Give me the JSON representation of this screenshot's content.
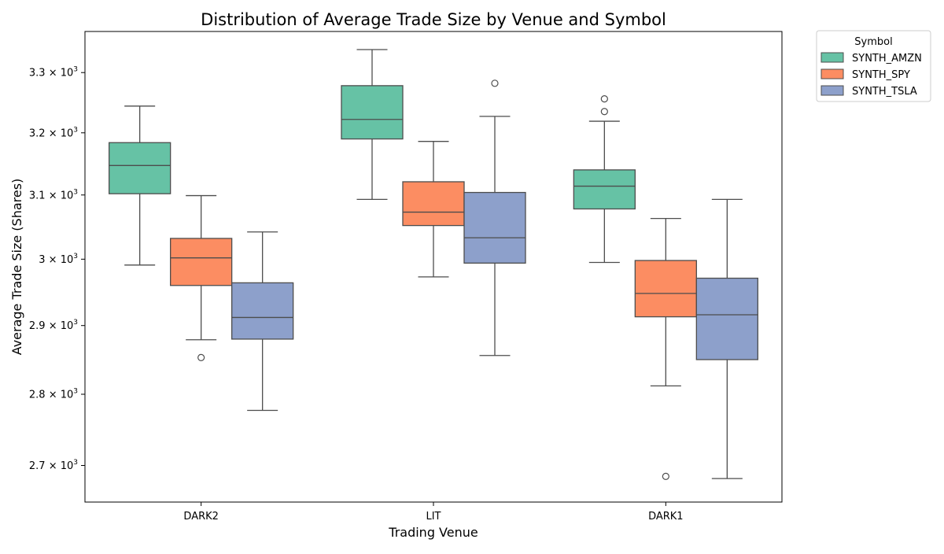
{
  "chart_data": {
    "type": "box",
    "title": "Distribution of Average Trade Size by Venue and Symbol",
    "xlabel": "Trading Venue",
    "ylabel": "Average Trade Size (Shares)",
    "yscale": "log",
    "ylim": [
      2650,
      3370
    ],
    "yticks": [
      {
        "value": 2700,
        "base": "2.7",
        "exp": "3"
      },
      {
        "value": 2800,
        "base": "2.8",
        "exp": "3"
      },
      {
        "value": 2900,
        "base": "2.9",
        "exp": "3"
      },
      {
        "value": 3000,
        "base": "3",
        "exp": "3"
      },
      {
        "value": 3100,
        "base": "3.1",
        "exp": "3"
      },
      {
        "value": 3200,
        "base": "3.2",
        "exp": "3"
      },
      {
        "value": 3300,
        "base": "3.3",
        "exp": "3"
      }
    ],
    "categories": [
      "DARK2",
      "LIT",
      "DARK1"
    ],
    "legend": {
      "title": "Symbol",
      "position": "outside-top-right"
    },
    "series": [
      {
        "name": "SYNTH_AMZN",
        "color": "#66c2a5",
        "boxes": [
          {
            "whisker_low": 2991,
            "q1": 3102,
            "median": 3147,
            "q3": 3184,
            "whisker_high": 3244,
            "outliers": []
          },
          {
            "whisker_low": 3093,
            "q1": 3190,
            "median": 3222,
            "q3": 3278,
            "whisker_high": 3339,
            "outliers": []
          },
          {
            "whisker_low": 2995,
            "q1": 3078,
            "median": 3114,
            "q3": 3140,
            "whisker_high": 3219,
            "outliers": [
              3256,
              3235
            ]
          }
        ]
      },
      {
        "name": "SYNTH_SPY",
        "color": "#fc8d62",
        "boxes": [
          {
            "whisker_low": 2879,
            "q1": 2960,
            "median": 3002,
            "q3": 3032,
            "whisker_high": 3099,
            "outliers": [
              2853
            ]
          },
          {
            "whisker_low": 2973,
            "q1": 3052,
            "median": 3073,
            "q3": 3121,
            "whisker_high": 3186,
            "outliers": []
          },
          {
            "whisker_low": 2812,
            "q1": 2913,
            "median": 2948,
            "q3": 2998,
            "whisker_high": 3063,
            "outliers": [
              2685
            ]
          }
        ]
      },
      {
        "name": "SYNTH_TSLA",
        "color": "#8da0cb",
        "boxes": [
          {
            "whisker_low": 2777,
            "q1": 2880,
            "median": 2912,
            "q3": 2964,
            "whisker_high": 3042,
            "outliers": []
          },
          {
            "whisker_low": 2856,
            "q1": 2994,
            "median": 3033,
            "q3": 3104,
            "whisker_high": 3227,
            "outliers": [
              3282
            ]
          },
          {
            "whisker_low": 2682,
            "q1": 2850,
            "median": 2916,
            "q3": 2971,
            "whisker_high": 3093,
            "outliers": []
          }
        ]
      }
    ]
  }
}
